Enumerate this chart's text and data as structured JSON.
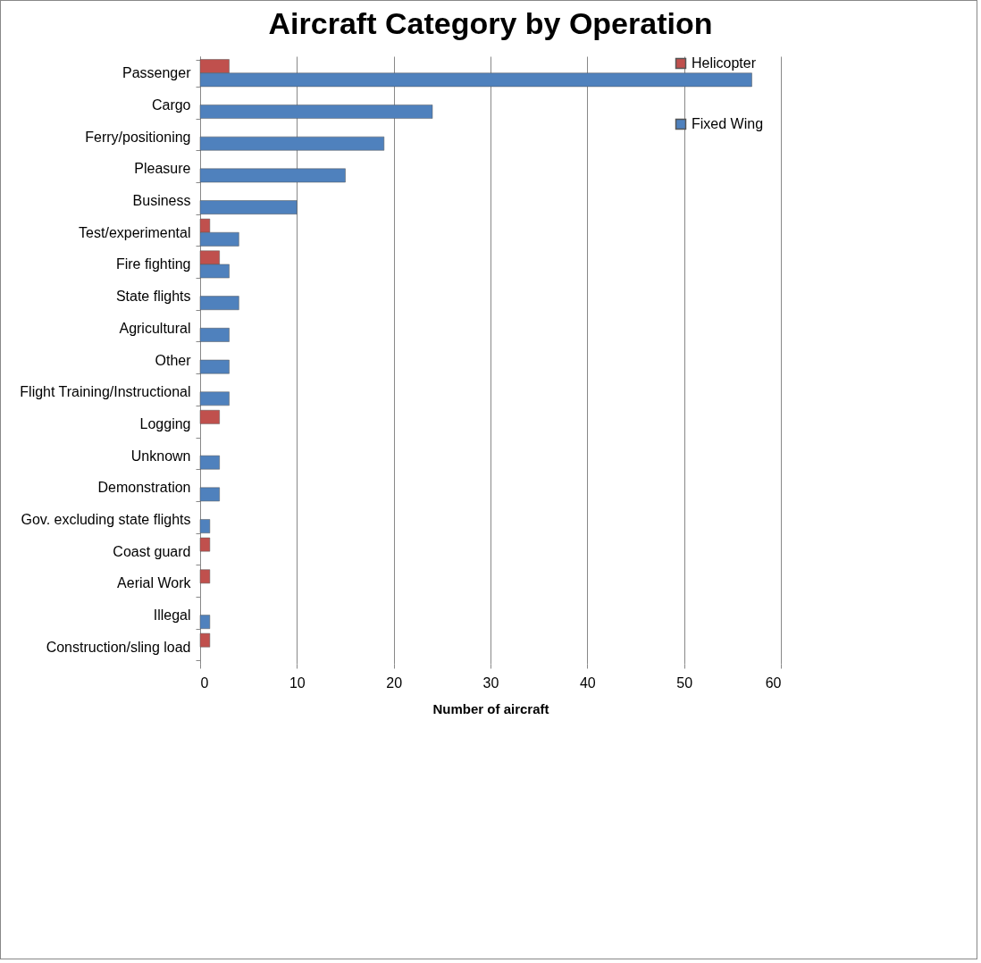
{
  "chart_data": {
    "type": "bar",
    "orientation": "horizontal",
    "title": "Aircraft Category by Operation",
    "xlabel": "Number of aircraft",
    "categories": [
      "Passenger",
      "Cargo",
      "Ferry/positioning",
      "Pleasure",
      "Business",
      "Test/experimental",
      "Fire fighting",
      "State flights",
      "Agricultural",
      "Other",
      "Flight Training/Instructional",
      "Logging",
      "Unknown",
      "Demonstration",
      "Gov. excluding state flights",
      "Coast guard",
      "Aerial Work",
      "Illegal",
      "Construction/sling load"
    ],
    "series": [
      {
        "name": "Helicopter",
        "color": "#c0504d",
        "values": [
          3,
          null,
          null,
          null,
          null,
          1,
          2,
          null,
          null,
          null,
          null,
          2,
          null,
          null,
          null,
          1,
          1,
          null,
          1
        ]
      },
      {
        "name": "Fixed Wing",
        "color": "#4f81bd",
        "values": [
          57,
          24,
          19,
          15,
          10,
          4,
          3,
          4,
          3,
          3,
          3,
          null,
          2,
          2,
          1,
          null,
          null,
          1,
          null
        ]
      }
    ],
    "xlim": [
      0,
      60
    ],
    "xticks": [
      0,
      10,
      20,
      30,
      40,
      50,
      60
    ],
    "grid": "x",
    "legend": "right"
  }
}
